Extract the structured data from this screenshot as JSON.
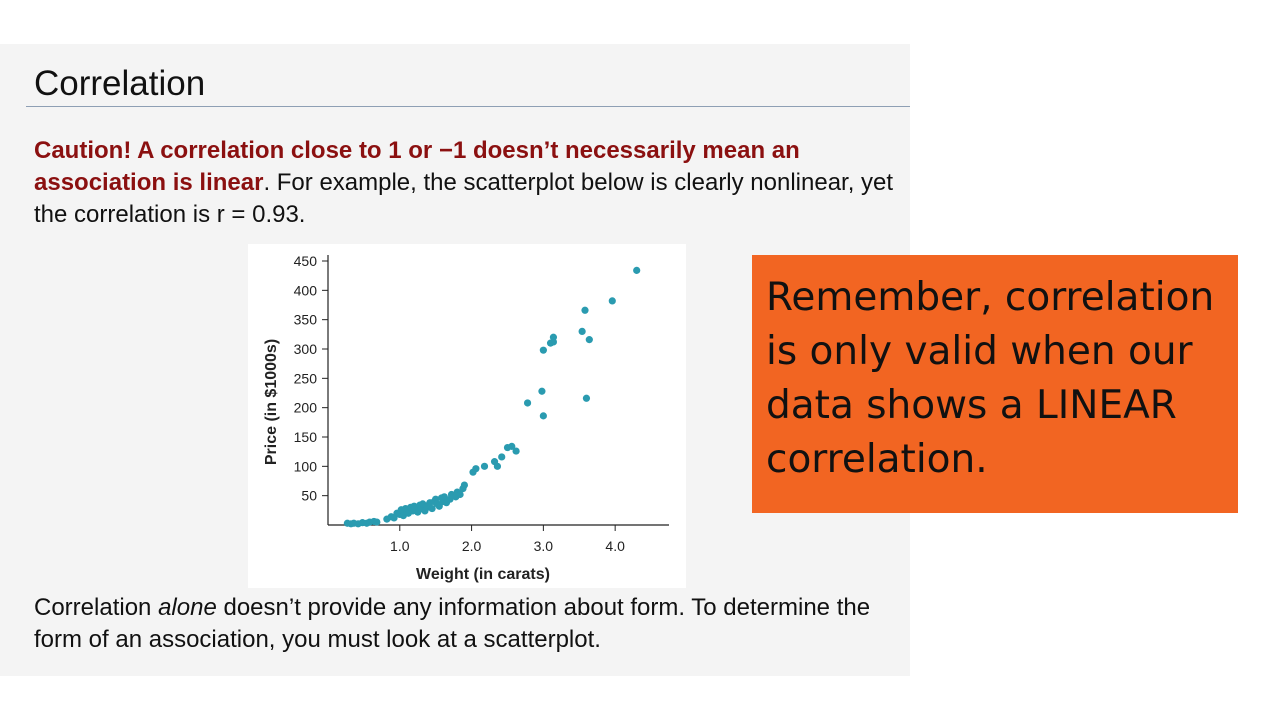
{
  "slide": {
    "title": "Correlation",
    "caution_bold": "Caution! A correlation close to 1 or −1 doesn’t necessarily mean an association is linear",
    "caution_rest": ". For example, the scatterplot below is clearly nonlinear, yet the correlation is r = 0.93.",
    "form_before": "Correlation ",
    "form_italic": "alone",
    "form_after": " doesn’t provide any information about form. To determine the form of an association, you must look at a scatterplot."
  },
  "callout": {
    "text": "Remember, correlation is only valid when our data shows a LINEAR correlation.",
    "background": "#f26522"
  },
  "colors": {
    "point": "#2a9bb0",
    "caution": "#8b1010"
  },
  "chart_data": {
    "type": "scatter",
    "xlabel": "Weight (in carats)",
    "ylabel": "Price (in $1000s)",
    "xlim": [
      0,
      4.75
    ],
    "ylim": [
      0,
      450
    ],
    "xticks": [
      1.0,
      2.0,
      3.0,
      4.0
    ],
    "xtick_labels": [
      "1.0",
      "2.0",
      "3.0",
      "4.0"
    ],
    "yticks": [
      50,
      100,
      150,
      200,
      250,
      300,
      350,
      400,
      450
    ],
    "ytick_labels": [
      "50",
      "100",
      "150",
      "200",
      "250",
      "300",
      "350",
      "400",
      "450"
    ],
    "grid": false,
    "points": [
      [
        0.27,
        3
      ],
      [
        0.32,
        2
      ],
      [
        0.36,
        3
      ],
      [
        0.42,
        2
      ],
      [
        0.48,
        4
      ],
      [
        0.54,
        3
      ],
      [
        0.58,
        5
      ],
      [
        0.64,
        6
      ],
      [
        0.68,
        5
      ],
      [
        0.82,
        10
      ],
      [
        0.88,
        14
      ],
      [
        0.92,
        12
      ],
      [
        0.96,
        20
      ],
      [
        1.0,
        18
      ],
      [
        1.02,
        26
      ],
      [
        1.05,
        16
      ],
      [
        1.08,
        28
      ],
      [
        1.1,
        22
      ],
      [
        1.12,
        20
      ],
      [
        1.15,
        30
      ],
      [
        1.18,
        24
      ],
      [
        1.2,
        32
      ],
      [
        1.22,
        26
      ],
      [
        1.25,
        22
      ],
      [
        1.28,
        34
      ],
      [
        1.3,
        28
      ],
      [
        1.32,
        36
      ],
      [
        1.35,
        24
      ],
      [
        1.38,
        30
      ],
      [
        1.4,
        34
      ],
      [
        1.42,
        38
      ],
      [
        1.45,
        28
      ],
      [
        1.48,
        40
      ],
      [
        1.5,
        44
      ],
      [
        1.52,
        36
      ],
      [
        1.55,
        32
      ],
      [
        1.58,
        46
      ],
      [
        1.6,
        40
      ],
      [
        1.62,
        48
      ],
      [
        1.65,
        38
      ],
      [
        1.7,
        44
      ],
      [
        1.72,
        52
      ],
      [
        1.78,
        48
      ],
      [
        1.8,
        56
      ],
      [
        1.84,
        52
      ],
      [
        1.88,
        62
      ],
      [
        1.9,
        68
      ],
      [
        2.02,
        90
      ],
      [
        2.06,
        96
      ],
      [
        2.18,
        100
      ],
      [
        2.32,
        108
      ],
      [
        2.36,
        100
      ],
      [
        2.42,
        116
      ],
      [
        2.5,
        132
      ],
      [
        2.56,
        134
      ],
      [
        2.62,
        126
      ],
      [
        2.78,
        208
      ],
      [
        2.98,
        228
      ],
      [
        3.0,
        186
      ],
      [
        3.0,
        298
      ],
      [
        3.1,
        310
      ],
      [
        3.14,
        320
      ],
      [
        3.14,
        312
      ],
      [
        3.54,
        330
      ],
      [
        3.58,
        366
      ],
      [
        3.6,
        216
      ],
      [
        3.64,
        316
      ],
      [
        3.96,
        382
      ],
      [
        4.3,
        434
      ]
    ]
  }
}
